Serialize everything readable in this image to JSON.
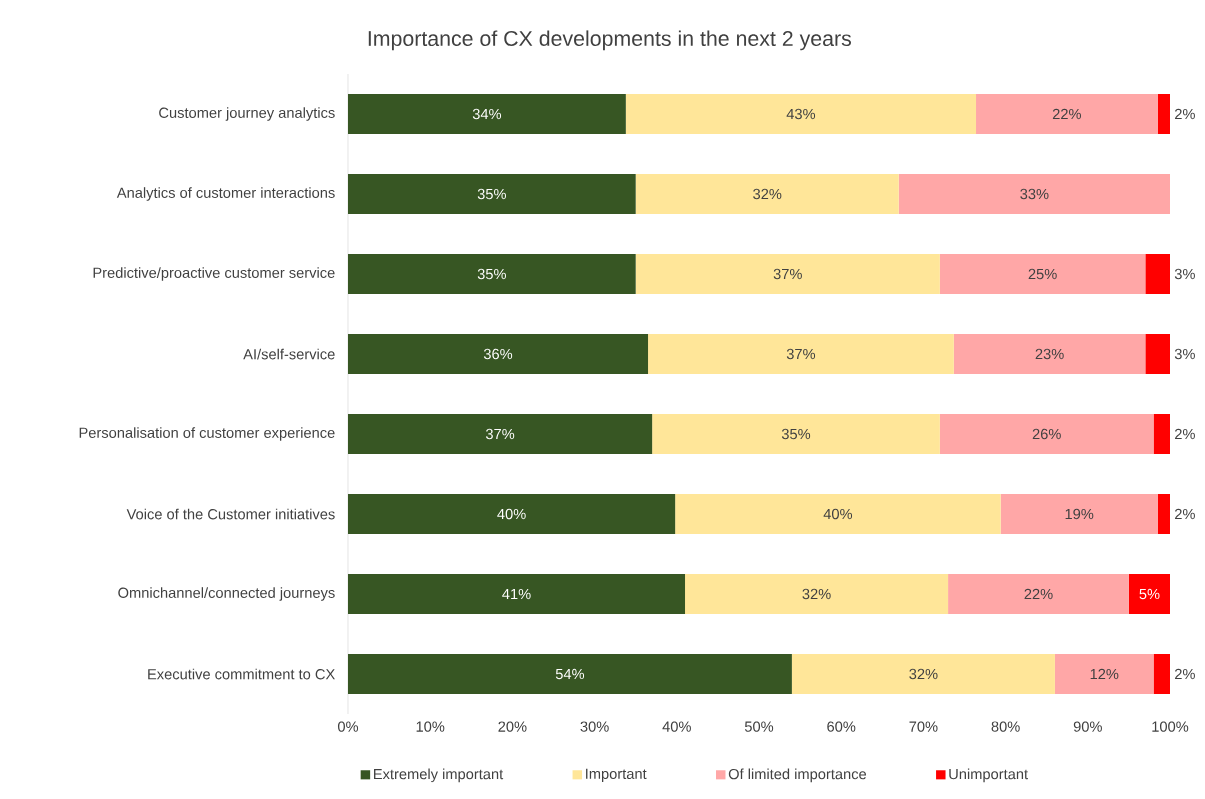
{
  "chart_data": {
    "type": "bar",
    "orientation": "horizontal",
    "stacked": true,
    "title": "Importance of CX developments in the next 2 years",
    "categories": [
      "Customer journey analytics",
      "Analytics of customer interactions",
      "Predictive/proactive customer service",
      "AI/self-service",
      "Personalisation of customer experience",
      "Voice of the Customer initiatives",
      "Omnichannel/connected journeys",
      "Executive commitment to CX"
    ],
    "series": [
      {
        "name": "Extremely important",
        "color": "#375623",
        "values": [
          33.8,
          35,
          35,
          36.5,
          37,
          39.8,
          41,
          54
        ],
        "value_labels": [
          "34%",
          "35%",
          "35%",
          "36%",
          "37%",
          "40%",
          "41%",
          "54%"
        ]
      },
      {
        "name": "Important",
        "color": "#ffe699",
        "values": [
          42.6,
          32,
          37,
          37.2,
          35,
          39.6,
          32,
          32
        ],
        "value_labels": [
          "43%",
          "32%",
          "37%",
          "37%",
          "35%",
          "40%",
          "32%",
          "32%"
        ]
      },
      {
        "name": "Of limited importance",
        "color": "#ffa7a7",
        "values": [
          22.1,
          33,
          25,
          23.3,
          26,
          19.1,
          22,
          12
        ],
        "value_labels": [
          "22%",
          "33%",
          "25%",
          "23%",
          "26%",
          "19%",
          "22%",
          "12%"
        ]
      },
      {
        "name": "Unimportant",
        "color": "#ff0000",
        "values": [
          1.5,
          null,
          3,
          3,
          2,
          1.5,
          5,
          2
        ],
        "value_labels": [
          "2%",
          null,
          "3%",
          "3%",
          "2%",
          "2%",
          "5%",
          "2%"
        ]
      }
    ],
    "xlim": [
      0,
      100
    ],
    "xticks": [
      {
        "value": 0,
        "label": "0%"
      },
      {
        "value": 10,
        "label": "10%"
      },
      {
        "value": 20,
        "label": "20%"
      },
      {
        "value": 30,
        "label": "30%"
      },
      {
        "value": 40,
        "label": "40%"
      },
      {
        "value": 50,
        "label": "50%"
      },
      {
        "value": 60,
        "label": "60%"
      },
      {
        "value": 70,
        "label": "70%"
      },
      {
        "value": 80,
        "label": "80%"
      },
      {
        "value": 90,
        "label": "90%"
      },
      {
        "value": 100,
        "label": "100%"
      }
    ],
    "legend": "bottom",
    "grid": false
  }
}
